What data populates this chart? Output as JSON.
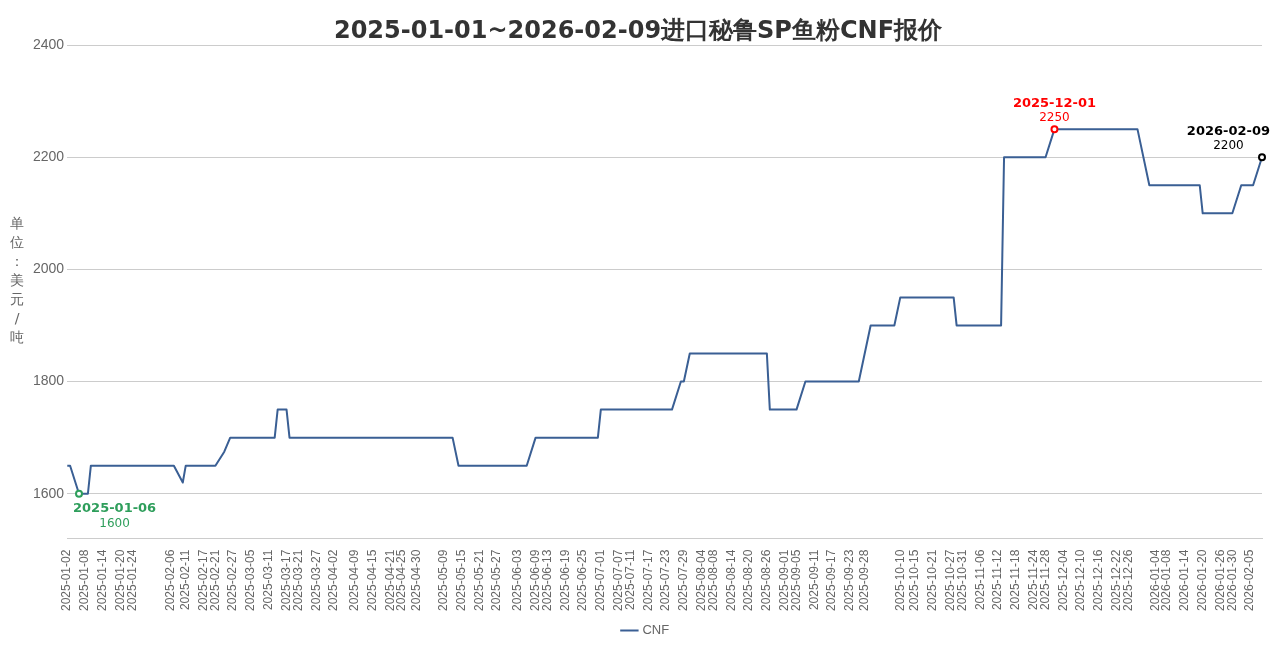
{
  "chart_data": {
    "type": "line",
    "title": "2025-01-01~2026-02-09进口秘鲁SP鱼粉CNF报价",
    "ylabel": "单位：美元/吨",
    "x": [
      "2025-01-02",
      "2025-01-03",
      "2025-01-06",
      "2025-01-09",
      "2025-01-10",
      "2025-02-07",
      "2025-02-10",
      "2025-02-11",
      "2025-02-21",
      "2025-02-24",
      "2025-02-26",
      "2025-03-13",
      "2025-03-14",
      "2025-03-17",
      "2025-03-18",
      "2025-05-12",
      "2025-05-14",
      "2025-06-06",
      "2025-06-09",
      "2025-06-30",
      "2025-07-01",
      "2025-07-25",
      "2025-07-28",
      "2025-07-29",
      "2025-07-31",
      "2025-08-26",
      "2025-08-27",
      "2025-09-05",
      "2025-09-08",
      "2025-09-26",
      "2025-09-30",
      "2025-10-08",
      "2025-10-10",
      "2025-10-28",
      "2025-10-29",
      "2025-11-13",
      "2025-11-14",
      "2025-11-28",
      "2025-12-01",
      "2025-12-29",
      "2026-01-02",
      "2026-01-19",
      "2026-01-20",
      "2026-01-30",
      "2026-02-02",
      "2026-02-06",
      "2026-02-09"
    ],
    "series": [
      {
        "name": "CNF",
        "color": "#3a5f94",
        "values": [
          1650,
          1650,
          1600,
          1600,
          1650,
          1650,
          1620,
          1650,
          1650,
          1675,
          1700,
          1700,
          1750,
          1750,
          1700,
          1700,
          1650,
          1650,
          1700,
          1700,
          1750,
          1750,
          1800,
          1800,
          1850,
          1850,
          1750,
          1750,
          1800,
          1800,
          1900,
          1900,
          1950,
          1950,
          1900,
          1900,
          2200,
          2200,
          2250,
          2250,
          2150,
          2150,
          2100,
          2100,
          2150,
          2150,
          2200
        ]
      }
    ],
    "xlim": [
      "2025-01-02",
      "2026-02-09"
    ],
    "xticks": [
      "2025-01-02",
      "2025-01-08",
      "2025-01-14",
      "2025-01-20",
      "2025-01-24",
      "2025-02-06",
      "2025-02-11",
      "2025-02-17",
      "2025-02-21",
      "2025-02-27",
      "2025-03-05",
      "2025-03-11",
      "2025-03-17",
      "2025-03-21",
      "2025-03-27",
      "2025-04-02",
      "2025-04-09",
      "2025-04-15",
      "2025-04-21",
      "2025-04-25",
      "2025-04-30",
      "2025-05-09",
      "2025-05-15",
      "2025-05-21",
      "2025-05-27",
      "2025-06-03",
      "2025-06-09",
      "2025-06-13",
      "2025-06-19",
      "2025-06-25",
      "2025-07-01",
      "2025-07-07",
      "2025-07-11",
      "2025-07-17",
      "2025-07-23",
      "2025-07-29",
      "2025-08-04",
      "2025-08-08",
      "2025-08-14",
      "2025-08-20",
      "2025-08-26",
      "2025-09-01",
      "2025-09-05",
      "2025-09-11",
      "2025-09-17",
      "2025-09-23",
      "2025-09-28",
      "2025-10-10",
      "2025-10-15",
      "2025-10-21",
      "2025-10-27",
      "2025-10-31",
      "2025-11-06",
      "2025-11-12",
      "2025-11-18",
      "2025-11-24",
      "2025-11-28",
      "2025-12-04",
      "2025-12-10",
      "2025-12-16",
      "2025-12-22",
      "2025-12-26",
      "2026-01-04",
      "2026-01-08",
      "2026-01-14",
      "2026-01-20",
      "2026-01-26",
      "2026-01-30",
      "2026-02-05"
    ],
    "ylim": [
      1520,
      2400
    ],
    "yticks": [
      1600,
      1800,
      2000,
      2200,
      2400
    ],
    "grid": "y",
    "legend": "bottom",
    "marker": "none",
    "line_style": "solid",
    "annotations": [
      {
        "text": "2025-01-06\n1600",
        "x": "2025-01-06",
        "y": 1600
      },
      {
        "text": "2025-12-01\n2250",
        "x": "2025-12-01",
        "y": 2250
      },
      {
        "text": "2026-02-09\n2200",
        "x": "2026-02-09",
        "y": 2200
      }
    ]
  }
}
